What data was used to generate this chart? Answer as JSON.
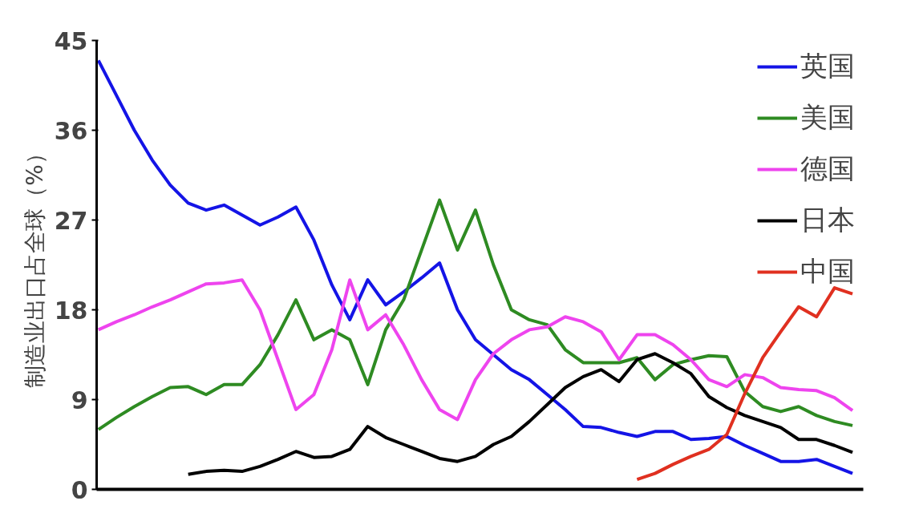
{
  "chart_data": {
    "type": "line",
    "ylabel": "制造业出口占全球（%）",
    "categories": [
      null,
      null,
      null,
      null,
      null,
      null,
      null,
      null,
      null,
      null,
      null,
      null,
      null,
      null,
      null,
      null,
      null,
      null,
      null,
      null,
      null,
      null,
      null,
      null,
      null,
      null,
      null,
      null,
      null,
      null,
      null,
      null,
      null,
      null,
      null,
      null,
      null,
      null,
      null,
      null,
      null,
      null,
      null
    ],
    "ylim": [
      0,
      45
    ],
    "yticks": [
      0,
      9,
      18,
      27,
      36,
      45
    ],
    "grid": false,
    "legend": "top right",
    "marker": "none",
    "line_style": "solid",
    "series": [
      {
        "name": "英国",
        "color": "#1414e6",
        "values": [
          43,
          39.5,
          36,
          33,
          30.5,
          28.7,
          28,
          28.5,
          27.5,
          26.5,
          27.3,
          28.3,
          25,
          20.5,
          17,
          21,
          18.5,
          19.8,
          21.2,
          22.7,
          18,
          15,
          13.5,
          12,
          11,
          9.5,
          8,
          6.3,
          6.2,
          5.7,
          5.3,
          5.8,
          5.8,
          5,
          5.1,
          5.3,
          4.4,
          3.6,
          2.8,
          2.8,
          3,
          2.3,
          1.6
        ]
      },
      {
        "name": "美国",
        "color": "#2e8b22",
        "values": [
          6,
          7.2,
          8.3,
          9.3,
          10.2,
          10.3,
          9.5,
          10.5,
          10.5,
          12.5,
          15.5,
          19,
          15,
          16,
          15,
          10.5,
          16,
          19,
          24,
          29,
          24,
          28,
          22.5,
          18,
          17,
          16.5,
          14,
          12.7,
          12.7,
          12.7,
          13.2,
          11,
          12.5,
          13,
          13.4,
          13.3,
          9.8,
          8.3,
          7.8,
          8.3,
          7.4,
          6.8,
          6.4
        ]
      },
      {
        "name": "德国",
        "color": "#ee44ee",
        "values": [
          16,
          16.8,
          17.5,
          18.3,
          19,
          19.8,
          20.6,
          20.7,
          21,
          18,
          13,
          8,
          9.5,
          14,
          21,
          16,
          17.5,
          14.5,
          11,
          8,
          7,
          11,
          13.6,
          15,
          16,
          16.3,
          17.3,
          16.8,
          15.8,
          13,
          15.5,
          15.5,
          14.5,
          13,
          11,
          10.3,
          11.5,
          11.2,
          10.2,
          10,
          9.9,
          9.2,
          7.9
        ]
      },
      {
        "name": "日本",
        "color": "#000000",
        "values": [
          null,
          null,
          null,
          null,
          null,
          1.5,
          1.8,
          1.9,
          1.8,
          2.3,
          3,
          3.8,
          3.2,
          3.3,
          4,
          6.3,
          5.2,
          4.5,
          3.8,
          3.1,
          2.8,
          3.3,
          4.5,
          5.3,
          6.8,
          8.5,
          10.2,
          11.3,
          12,
          10.8,
          13,
          13.6,
          12.7,
          11.6,
          9.3,
          8.2,
          7.4,
          6.8,
          6.2,
          5,
          5,
          4.4,
          3.7
        ]
      },
      {
        "name": "中国",
        "color": "#e03020",
        "values": [
          null,
          null,
          null,
          null,
          null,
          null,
          null,
          null,
          null,
          null,
          null,
          null,
          null,
          null,
          null,
          null,
          null,
          null,
          null,
          null,
          null,
          null,
          null,
          null,
          null,
          null,
          null,
          null,
          null,
          null,
          1,
          1.6,
          2.5,
          3.3,
          4,
          5.5,
          9.6,
          13.2,
          15.8,
          18.3,
          17.3,
          20.2,
          19.6
        ]
      }
    ]
  }
}
